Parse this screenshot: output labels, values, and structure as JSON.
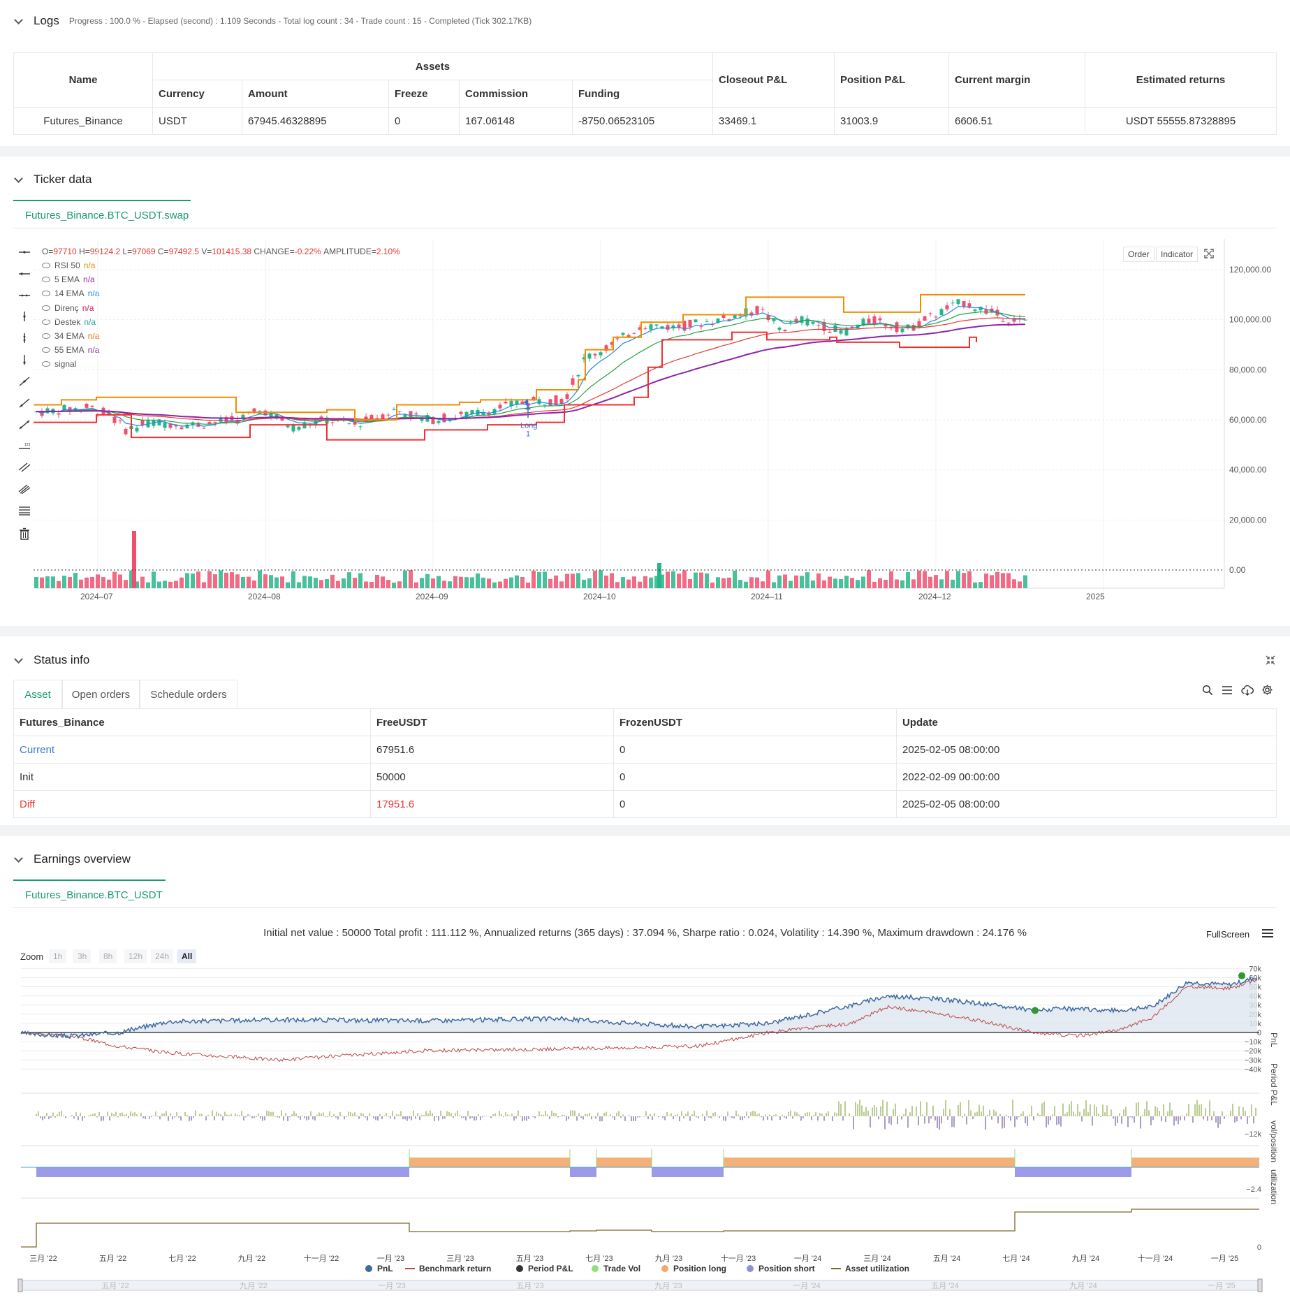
{
  "logs": {
    "title": "Logs",
    "summary": "Progress : 100.0 % - Elapsed (second) : 1.109  Seconds - Total log count : 34 - Trade count : 15 - Completed (Tick 302.17KB)",
    "headers": {
      "name": "Name",
      "assets": "Assets",
      "currency": "Currency",
      "amount": "Amount",
      "freeze": "Freeze",
      "commission": "Commission",
      "funding": "Funding",
      "closeout": "Closeout P&L",
      "position": "Position P&L",
      "margin": "Current margin",
      "returns": "Estimated returns"
    },
    "row": {
      "name": "Futures_Binance",
      "currency": "USDT",
      "amount": "67945.46328895",
      "freeze": "0",
      "commission": "167.06148",
      "funding": "-8750.06523105",
      "closeout": "33469.1",
      "position": "31003.9",
      "margin": "6606.51",
      "returns": "USDT 55555.87328895"
    }
  },
  "ticker": {
    "title": "Ticker data",
    "tab": "Futures_Binance.BTC_USDT.swap",
    "ohlc": {
      "o_label": "O=",
      "o": "97710",
      "h_label": "H=",
      "h": "99124.2",
      "l_label": "L=",
      "l": "97069",
      "c_label": "C=",
      "c": "97492.5",
      "v_label": "V=",
      "v": "101415.38",
      "change_label": "CHANGE=",
      "change": "-0.22%",
      "amp_label": "AMPLITUDE=",
      "amp": "2.10%"
    },
    "legend": [
      {
        "name": "RSI 50",
        "value": "n/a",
        "color": "#e8890c"
      },
      {
        "name": "5 EMA",
        "value": "n/a",
        "color": "#9c27b0"
      },
      {
        "name": "14 EMA",
        "value": "n/a",
        "color": "#1e88e5"
      },
      {
        "name": "Direnç",
        "value": "n/a",
        "color": "#d81b60"
      },
      {
        "name": "Destek",
        "value": "n/a",
        "color": "#26a69a"
      },
      {
        "name": "34 EMA",
        "value": "n/a",
        "color": "#ef6c00"
      },
      {
        "name": "55 EMA",
        "value": "n/a",
        "color": "#8e24aa"
      },
      {
        "name": "signal",
        "value": "",
        "color": "#555"
      }
    ],
    "buttons": {
      "order": "Order",
      "indicator": "Indicator"
    },
    "yaxis": [
      "120,000.00",
      "100,000.00",
      "80,000.00",
      "60,000.00",
      "40,000.00",
      "20,000.00",
      "0.00"
    ],
    "xaxis": [
      "2024–07",
      "2024–08",
      "2024–09",
      "2024–10",
      "2024–11",
      "2024–12",
      "2025"
    ],
    "signal_label": "Long",
    "signal_sub": "1"
  },
  "status": {
    "title": "Status info",
    "tabs": [
      "Asset",
      "Open orders",
      "Schedule orders"
    ],
    "headers": [
      "Futures_Binance",
      "FreeUSDT",
      "FrozenUSDT",
      "Update"
    ],
    "rows": [
      {
        "label": "Current",
        "free": "67951.6",
        "frozen": "0",
        "update": "2025-02-05 08:00:00"
      },
      {
        "label": "Init",
        "free": "50000",
        "frozen": "0",
        "update": "2022-02-09 00:00:00"
      },
      {
        "label": "Diff",
        "free": "17951.6",
        "frozen": "0",
        "update": "2025-02-05 08:00:00"
      }
    ]
  },
  "earnings": {
    "title": "Earnings overview",
    "tab": "Futures_Binance.BTC_USDT",
    "stats": "Initial net value : 50000 Total profit : 111.112 %, Annualized returns (365 days) : 37.094 %, Sharpe ratio : 0.024, Volatility : 14.390 %, Maximum drawdown : 24.176 %",
    "fullscreen": "FullScreen",
    "zoom_label": "Zoom",
    "zoom_buttons": [
      "1h",
      "3h",
      "8h",
      "12h",
      "24h",
      "All"
    ],
    "pnl_axis": [
      "70k",
      "60k",
      "50k",
      "40k",
      "30k",
      "20k",
      "10k",
      "0",
      "−10k",
      "−20k",
      "−30k",
      "−40k"
    ],
    "period_axis": "−12k",
    "pos_axis": "−2.4",
    "util_axis": "0",
    "axis_titles": [
      "PnL",
      "Period P&L",
      "vol/position",
      "utilization"
    ],
    "months": [
      "三月 '22",
      "五月 '22",
      "七月 '22",
      "九月 '22",
      "十一月 '22",
      "一月 '23",
      "三月 '23",
      "五月 '23",
      "七月 '23",
      "九月 '23",
      "十一月 '23",
      "一月 '24",
      "三月 '24",
      "五月 '24",
      "七月 '24",
      "九月 '24",
      "十一月 '24",
      "一月 '25"
    ],
    "legend": [
      {
        "name": "PnL",
        "color": "#3d6aa0"
      },
      {
        "name": "Benchmark return",
        "color": "#b84a4a"
      },
      {
        "name": "Period P&L",
        "color": "#333333"
      },
      {
        "name": "Trade Vol",
        "color": "#8fe07a"
      },
      {
        "name": "Position long",
        "color": "#f2a868"
      },
      {
        "name": "Position short",
        "color": "#8f8fe0"
      },
      {
        "name": "Asset utilization",
        "color": "#7a6a2a"
      }
    ],
    "navigator": [
      "五月 '22",
      "九月 '22",
      "一月 '23",
      "五月 '23",
      "九月 '23",
      "一月 '24",
      "五月 '24",
      "九月 '24",
      "一月 '25"
    ]
  }
}
